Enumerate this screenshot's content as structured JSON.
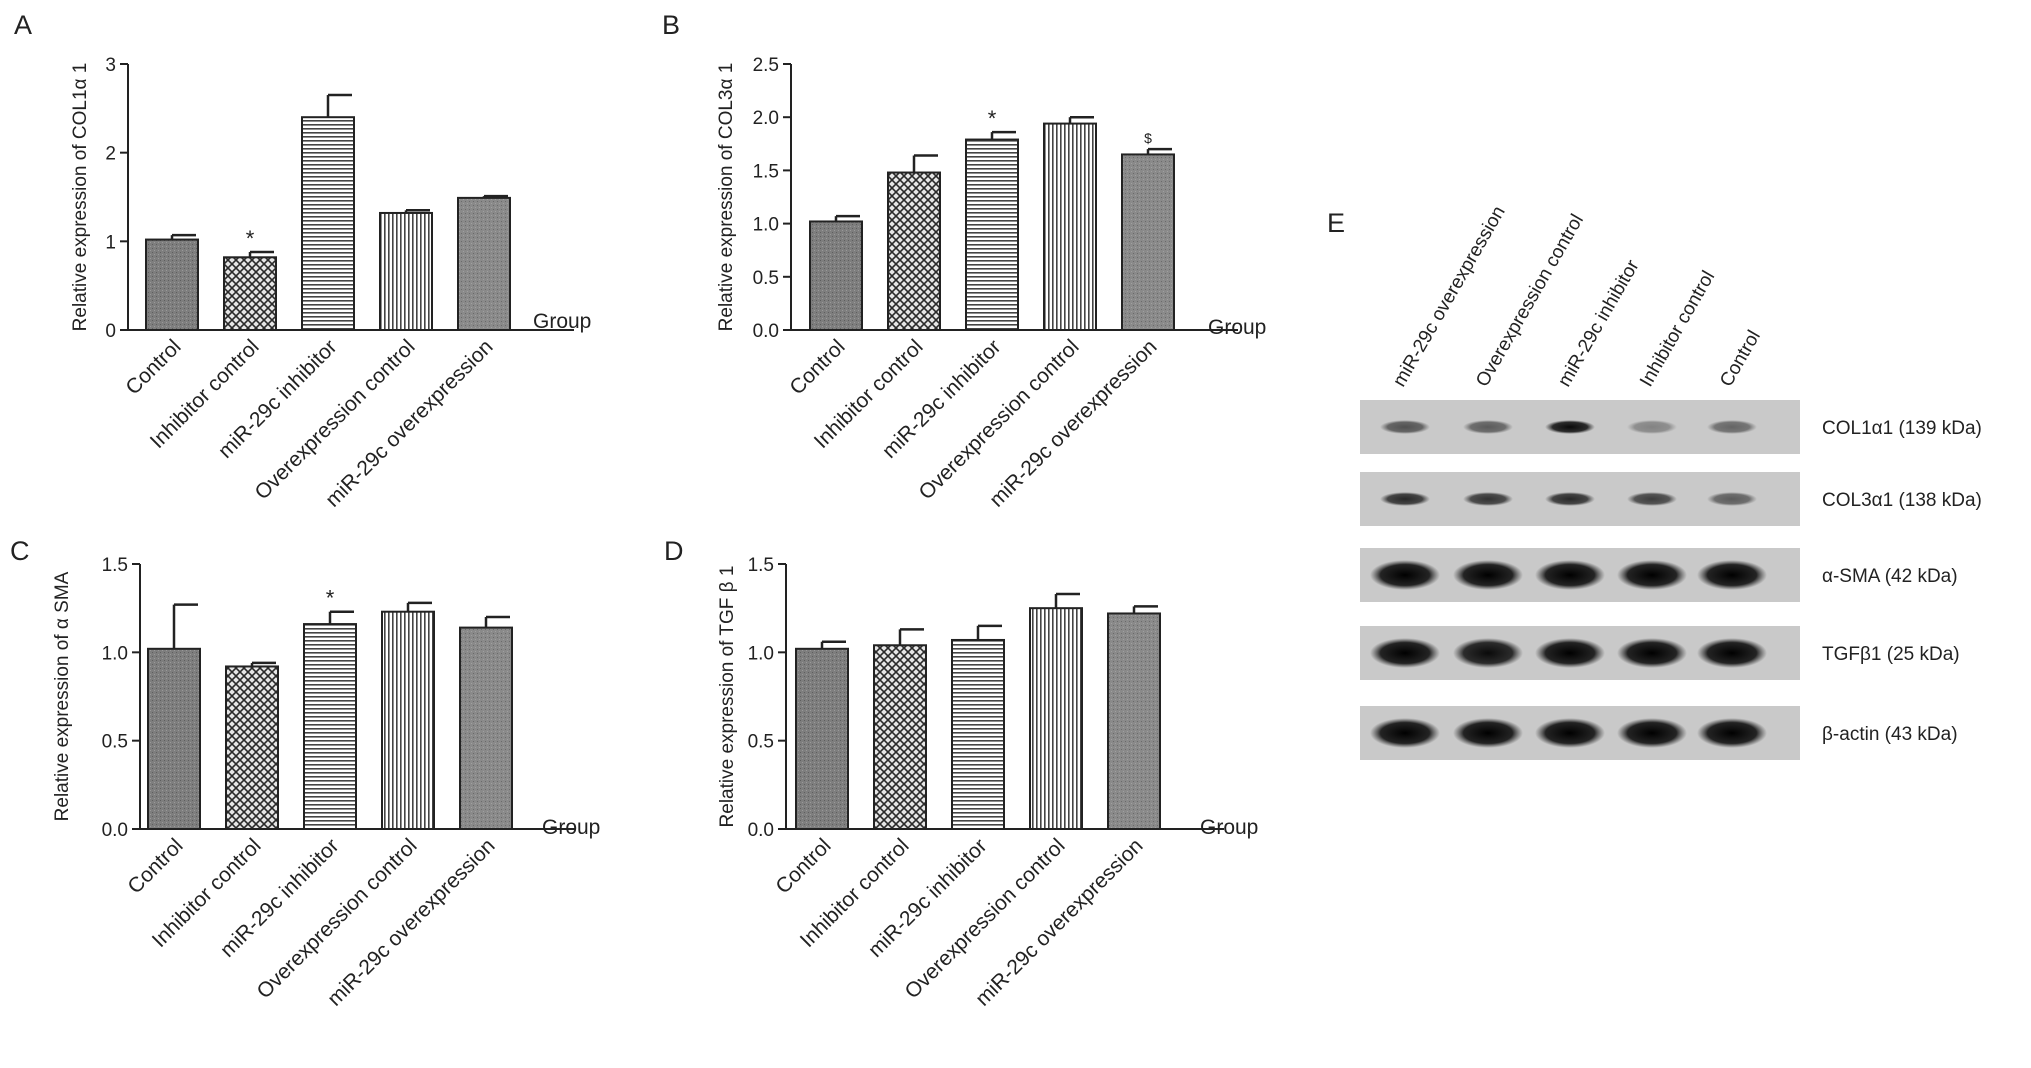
{
  "chart_data": [
    {
      "panel": "A",
      "type": "bar",
      "ylabel": "Relative expression of COL1α 1",
      "xlabel": "Group",
      "ylim": [
        0,
        3
      ],
      "yticks": [
        "0",
        "1",
        "2",
        "3"
      ],
      "categories": [
        "Control",
        "Inhibitor control",
        "miR-29c inhibitor",
        "Overexpression control",
        "miR-29c overexpression"
      ],
      "values": [
        1.02,
        0.82,
        2.4,
        1.32,
        1.49
      ],
      "errors": [
        0.05,
        0.06,
        0.25,
        0.03,
        0.02
      ],
      "annotations": [
        "",
        "*",
        "",
        "",
        ""
      ]
    },
    {
      "panel": "B",
      "type": "bar",
      "ylabel": "Relative expression of COL3α 1",
      "xlabel": "Group",
      "ylim": [
        0,
        2.5
      ],
      "yticks": [
        "0.0",
        "0.5",
        "1.0",
        "1.5",
        "2.0",
        "2.5"
      ],
      "categories": [
        "Control",
        "Inhibitor control",
        "miR-29c inhibitor",
        "Overexpression control",
        "miR-29c overexpression"
      ],
      "values": [
        1.02,
        1.48,
        1.79,
        1.94,
        1.65
      ],
      "errors": [
        0.05,
        0.16,
        0.07,
        0.06,
        0.05
      ],
      "annotations": [
        "",
        "",
        "*",
        "",
        "$"
      ]
    },
    {
      "panel": "C",
      "type": "bar",
      "ylabel": "Relative expression of α SMA",
      "xlabel": "Group",
      "ylim": [
        0,
        1.5
      ],
      "yticks": [
        "0.0",
        "0.5",
        "1.0",
        "1.5"
      ],
      "categories": [
        "Control",
        "Inhibitor control",
        "miR-29c inhibitor",
        "Overexpression control",
        "miR-29c overexpression"
      ],
      "values": [
        1.02,
        0.92,
        1.16,
        1.23,
        1.14
      ],
      "errors": [
        0.25,
        0.02,
        0.07,
        0.05,
        0.06
      ],
      "annotations": [
        "",
        "",
        "*",
        "",
        ""
      ]
    },
    {
      "panel": "D",
      "type": "bar",
      "ylabel": "Relative expression of TGF β 1",
      "xlabel": "Group",
      "ylim": [
        0,
        1.5
      ],
      "yticks": [
        "0.0",
        "0.5",
        "1.0",
        "1.5"
      ],
      "categories": [
        "Control",
        "Inhibitor control",
        "miR-29c inhibitor",
        "Overexpression control",
        "miR-29c overexpression"
      ],
      "values": [
        1.02,
        1.04,
        1.07,
        1.25,
        1.22
      ],
      "errors": [
        0.04,
        0.09,
        0.08,
        0.08,
        0.04
      ],
      "annotations": [
        "",
        "",
        "",
        "",
        ""
      ]
    }
  ],
  "blot": {
    "panel": "E",
    "lanes": [
      "miR-29c overexpression",
      "Overexpression control",
      "miR-29c inhibitor",
      "Inhibitor control",
      "Control"
    ],
    "rows": [
      {
        "label": "COL1α1 (139 kDa)",
        "intensity": [
          0.6,
          0.55,
          0.95,
          0.35,
          0.5
        ]
      },
      {
        "label": "COL3α1 (138 kDa)",
        "intensity": [
          0.8,
          0.75,
          0.8,
          0.7,
          0.55
        ]
      },
      {
        "label": "α-SMA (42 kDa)",
        "intensity": [
          1,
          1,
          1,
          1,
          1
        ]
      },
      {
        "label": "TGFβ1 (25 kDa)",
        "intensity": [
          1,
          0.95,
          1,
          1,
          1
        ]
      },
      {
        "label": "β-actin (43 kDa)",
        "intensity": [
          1,
          1,
          1,
          1,
          1
        ]
      }
    ]
  }
}
